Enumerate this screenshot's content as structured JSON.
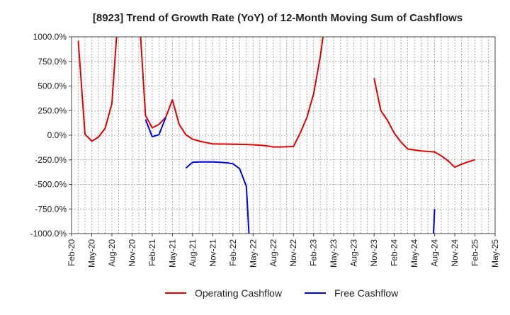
{
  "chart_data": {
    "type": "line",
    "title": "[8923]  Trend of Growth Rate (YoY) of 12-Month Moving Sum of Cashflows",
    "xlabel": "",
    "ylabel": "",
    "x_ticks": [
      "Feb-20",
      "May-20",
      "Aug-20",
      "Nov-20",
      "Feb-21",
      "May-21",
      "Aug-21",
      "Nov-21",
      "Feb-22",
      "May-22",
      "Aug-22",
      "Nov-22",
      "Feb-23",
      "May-23",
      "Aug-23",
      "Nov-23",
      "Feb-24",
      "May-24",
      "Aug-24",
      "Nov-24",
      "Feb-25",
      "May-25"
    ],
    "y_ticks": [
      "1000.0%",
      "750.0%",
      "500.0%",
      "250.0%",
      "0.0%",
      "-250.0%",
      "-500.0%",
      "-750.0%",
      "-1000.0%"
    ],
    "ylim": [
      -1000,
      1000
    ],
    "grid": true,
    "legend_position": "bottom",
    "series": [
      {
        "name": "Operating Cashflow",
        "color": "#e00000",
        "points": [
          [
            "2020-03",
            960
          ],
          [
            "2020-04",
            10
          ],
          [
            "2020-05",
            -60
          ],
          [
            "2020-06",
            -20
          ],
          [
            "2020-07",
            70
          ],
          [
            "2020-08",
            320
          ],
          [
            "2020-09",
            1300
          ],
          null,
          [
            "2020-12",
            1300
          ],
          [
            "2021-01",
            200
          ],
          [
            "2021-02",
            75
          ],
          [
            "2021-03",
            110
          ],
          [
            "2021-04",
            180
          ],
          [
            "2021-05",
            360
          ],
          [
            "2021-06",
            110
          ],
          [
            "2021-07",
            5
          ],
          [
            "2021-08",
            -40
          ],
          [
            "2021-09",
            -60
          ],
          [
            "2021-10",
            -75
          ],
          [
            "2021-11",
            -88
          ],
          [
            "2021-12",
            -90
          ],
          [
            "2022-01",
            -90
          ],
          [
            "2022-02",
            -92
          ],
          [
            "2022-03",
            -93
          ],
          [
            "2022-04",
            -94
          ],
          [
            "2022-05",
            -97
          ],
          [
            "2022-06",
            -102
          ],
          [
            "2022-07",
            -108
          ],
          [
            "2022-08",
            -120
          ],
          [
            "2022-09",
            -120
          ],
          [
            "2022-10",
            -118
          ],
          [
            "2022-11",
            -115
          ],
          [
            "2022-12",
            20
          ],
          [
            "2023-01",
            180
          ],
          [
            "2023-02",
            420
          ],
          [
            "2023-03",
            800
          ],
          [
            "2023-04",
            1300
          ],
          null,
          [
            "2023-11",
            580
          ],
          [
            "2023-12",
            250
          ],
          [
            "2024-01",
            150
          ],
          [
            "2024-02",
            20
          ],
          [
            "2024-03",
            -70
          ],
          [
            "2024-04",
            -140
          ],
          [
            "2024-05",
            -150
          ],
          [
            "2024-06",
            -160
          ],
          [
            "2024-07",
            -165
          ],
          [
            "2024-08",
            -170
          ],
          [
            "2024-09",
            -210
          ],
          [
            "2024-10",
            -260
          ],
          [
            "2024-11",
            -325
          ],
          [
            "2024-12",
            -295
          ],
          [
            "2025-01",
            -270
          ],
          [
            "2025-02",
            -250
          ]
        ]
      },
      {
        "name": "Free Cashflow",
        "color": "#0000e0",
        "points": [
          [
            "2021-01",
            160
          ],
          [
            "2021-02",
            -15
          ],
          [
            "2021-03",
            5
          ],
          [
            "2021-04",
            180
          ],
          null,
          [
            "2021-07",
            -335
          ],
          [
            "2021-08",
            -275
          ],
          [
            "2021-09",
            -272
          ],
          [
            "2021-10",
            -272
          ],
          [
            "2021-11",
            -272
          ],
          [
            "2021-12",
            -275
          ],
          [
            "2022-01",
            -280
          ],
          [
            "2022-02",
            -290
          ],
          [
            "2022-03",
            -340
          ],
          [
            "2022-04",
            -520
          ],
          [
            "2022-04-20",
            -1300
          ],
          null,
          [
            "2024-07-20",
            -1300
          ],
          [
            "2024-08",
            -750
          ]
        ]
      }
    ]
  }
}
